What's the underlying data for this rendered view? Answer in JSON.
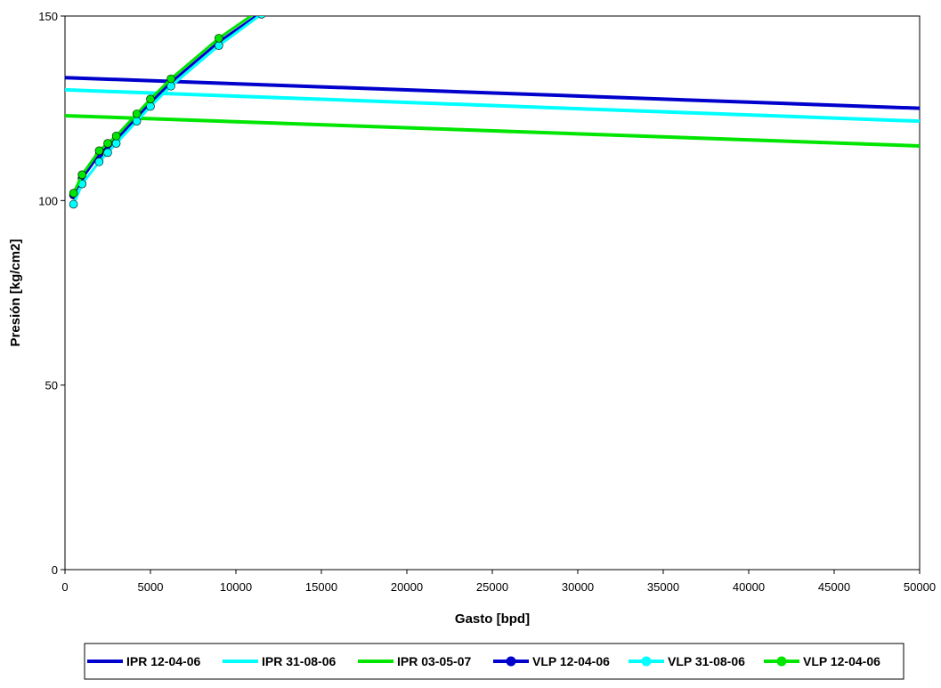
{
  "chart_data": {
    "type": "line",
    "title": "",
    "xlabel": "Gasto [bpd]",
    "ylabel": "Presión [kg/cm2]",
    "xlim": [
      0,
      50000
    ],
    "ylim": [
      0,
      150
    ],
    "x_ticks": [
      0,
      5000,
      10000,
      15000,
      20000,
      25000,
      30000,
      35000,
      40000,
      45000,
      50000
    ],
    "y_ticks": [
      0,
      50,
      100,
      150
    ],
    "grid": false,
    "legend_position": "bottom",
    "series": [
      {
        "name": "IPR 12-04-06",
        "color": "#0000cc",
        "markers": false,
        "x": [
          0,
          50000
        ],
        "y": [
          133.3,
          125.0
        ]
      },
      {
        "name": "IPR 31-08-06",
        "color": "#00ffff",
        "markers": false,
        "x": [
          0,
          50000
        ],
        "y": [
          130.0,
          121.5
        ]
      },
      {
        "name": "IPR 03-05-07",
        "color": "#00e600",
        "markers": false,
        "x": [
          0,
          50000
        ],
        "y": [
          123.0,
          114.8
        ]
      },
      {
        "name": "VLP 12-04-06",
        "color": "#0000cc",
        "markers": true,
        "x": [
          500,
          1000,
          2000,
          2500,
          3000,
          4200,
          5000,
          6200,
          9000,
          11500
        ],
        "y": [
          101.5,
          106.0,
          112.5,
          114.5,
          116.5,
          122.5,
          126.5,
          132.0,
          143.0,
          151.0
        ]
      },
      {
        "name": "VLP 31-08-06",
        "color": "#00ffff",
        "markers": true,
        "x": [
          500,
          1000,
          2000,
          2500,
          3000,
          4200,
          5000,
          6200,
          9000,
          11500
        ],
        "y": [
          99.0,
          104.5,
          110.5,
          113.0,
          115.5,
          121.5,
          125.5,
          131.0,
          142.0,
          150.5
        ]
      },
      {
        "name": "VLP 12-04-06",
        "color": "#00e600",
        "markers": true,
        "x": [
          500,
          1000,
          2000,
          2500,
          3000,
          4200,
          5000,
          6200,
          9000,
          11500
        ],
        "y": [
          102.0,
          107.0,
          113.5,
          115.5,
          117.5,
          123.5,
          127.5,
          133.0,
          144.0,
          152.0
        ]
      }
    ]
  }
}
